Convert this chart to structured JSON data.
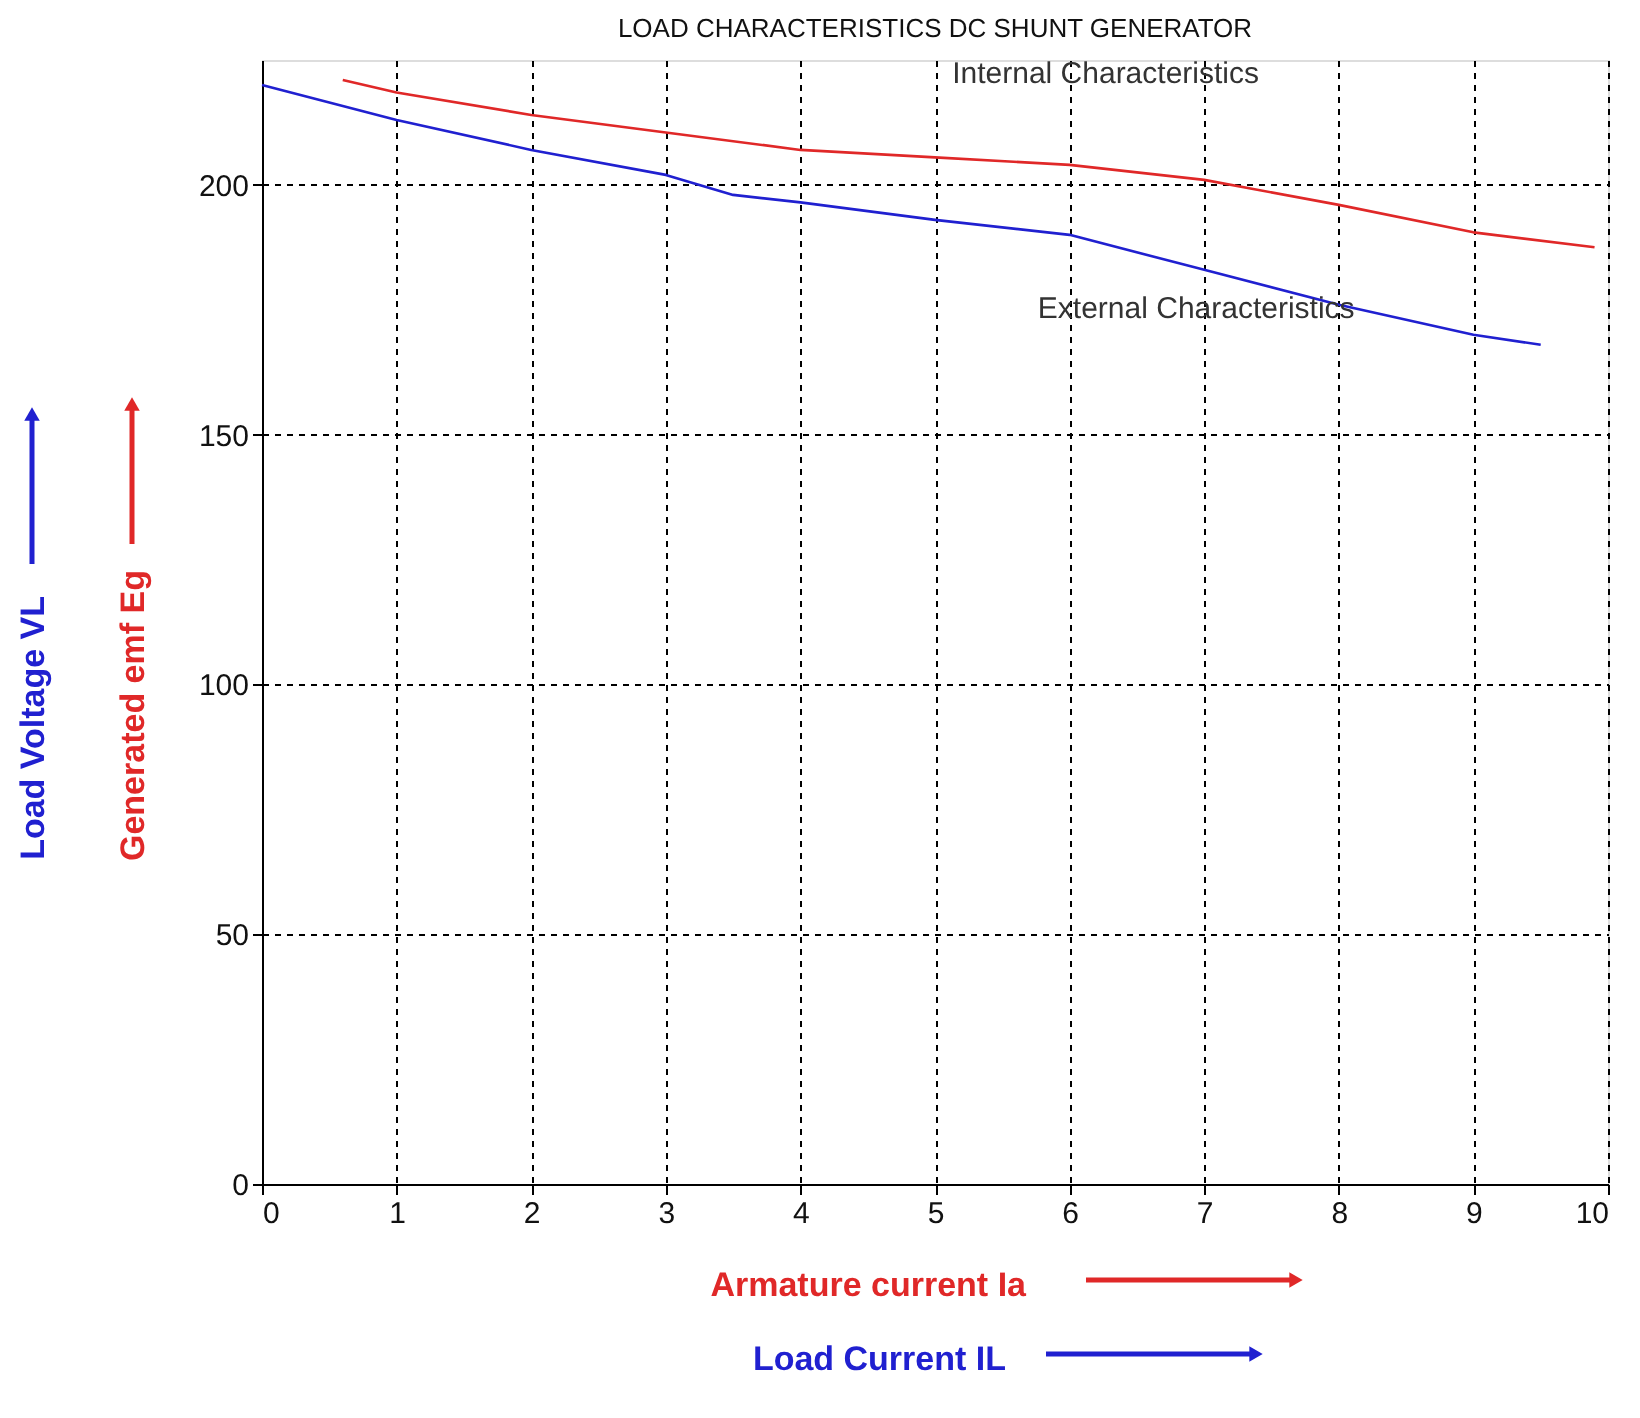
{
  "chart_data": {
    "type": "line",
    "title": "LOAD CHARACTERISTICS DC SHUNT GENERATOR",
    "xlabel": "Armature current Ia",
    "ylabel": "Generated emf Eg",
    "annotations": [
      "Load Current IL",
      "Load Voltage VL"
    ],
    "xlim": [
      0,
      10
    ],
    "xticks": [
      0,
      1,
      2,
      3,
      4,
      5,
      6,
      7,
      8,
      9,
      10
    ],
    "ylim": [
      0,
      225
    ],
    "yticks": [
      0,
      50,
      100,
      150,
      200
    ],
    "grid": true,
    "line_style": "solid",
    "series": [
      {
        "name": "Internal Characteristics",
        "color": "#e02828",
        "x": [
          0.6,
          1,
          2,
          3,
          4,
          5,
          6,
          7,
          8,
          9,
          9.9
        ],
        "values": [
          221,
          218.5,
          214,
          210.5,
          207,
          205.5,
          204,
          201,
          196,
          190.5,
          187.5
        ]
      },
      {
        "name": "External Characteristics",
        "color": "#2020d0",
        "x": [
          0,
          1,
          2,
          3,
          3.5,
          4,
          5,
          6,
          7,
          8,
          9,
          9.5
        ],
        "values": [
          220,
          213,
          207,
          202,
          198,
          196.5,
          193,
          190,
          183,
          176,
          170,
          168
        ]
      }
    ]
  }
}
